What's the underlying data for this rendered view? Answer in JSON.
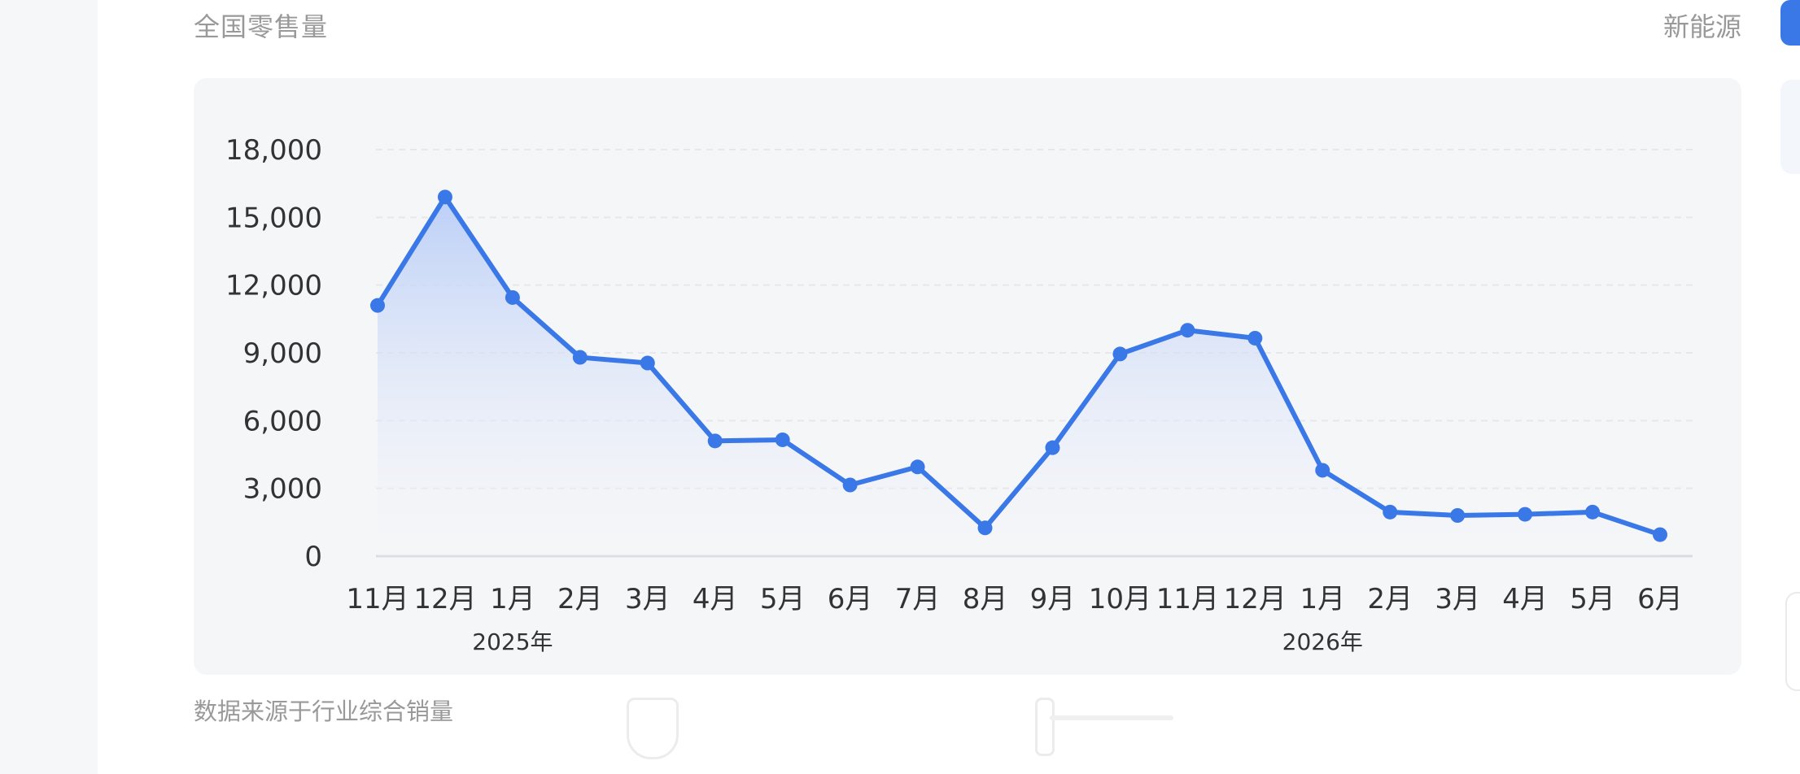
{
  "header": {
    "title": "全国零售量",
    "tag": "新能源"
  },
  "footer": {
    "note": "数据来源于行业综合销量"
  },
  "colors": {
    "line": "#3a78e8",
    "point": "#3a78e8",
    "area_top": "#b9cdf7",
    "area_bottom": "#f5f6f8",
    "card_bg": "#f5f6f8",
    "axis": "#d9dce1",
    "grid": "#e6e8ec",
    "tick_text": "#333333"
  },
  "chart_data": {
    "type": "area",
    "title": "",
    "xlabel": "",
    "ylabel": "",
    "ylim": [
      0,
      18000
    ],
    "yticks": [
      0,
      3000,
      6000,
      9000,
      12000,
      15000,
      18000
    ],
    "ytick_labels": [
      "0",
      "3,000",
      "6,000",
      "9,000",
      "12,000",
      "15,000",
      "18,000"
    ],
    "categories": [
      "11月",
      "12月",
      "1月",
      "2月",
      "3月",
      "4月",
      "5月",
      "6月",
      "7月",
      "8月",
      "9月",
      "10月",
      "11月",
      "12月",
      "1月",
      "2月",
      "3月",
      "4月",
      "5月",
      "6月"
    ],
    "year_labels": [
      {
        "label": "2025年",
        "category_index": 2
      },
      {
        "label": "2026年",
        "category_index": 14
      }
    ],
    "series": [
      {
        "values": [
          11100,
          15900,
          11450,
          8800,
          8550,
          5100,
          5150,
          3150,
          3950,
          1250,
          4800,
          8950,
          10000,
          9650,
          3800,
          1950,
          1800,
          1850,
          1950,
          950
        ]
      }
    ],
    "grid": true,
    "legend": "none"
  }
}
